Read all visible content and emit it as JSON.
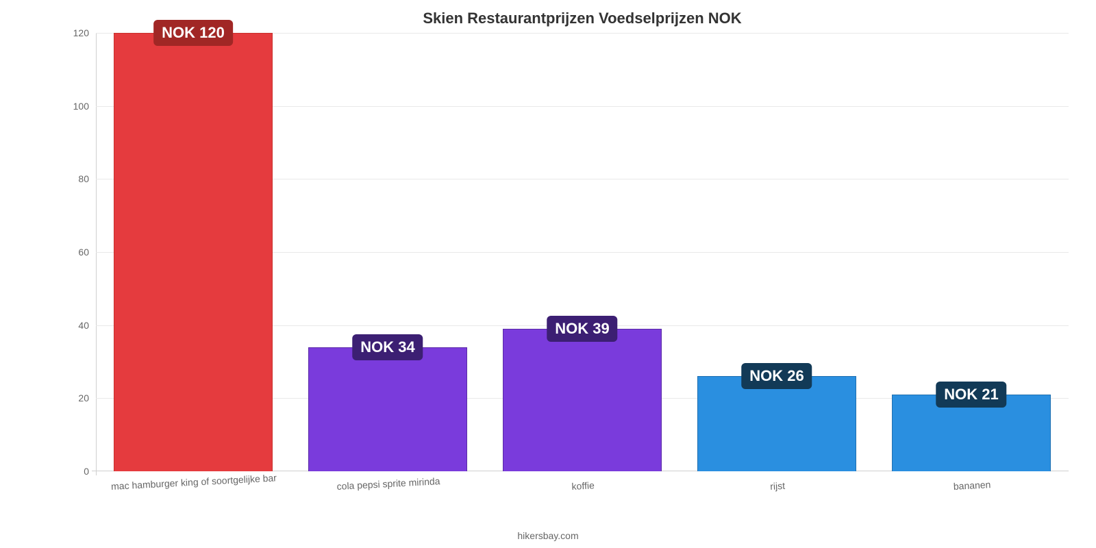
{
  "title": "Skien Restaurantprijzen Voedselprijzen NOK",
  "title_fontsize": 22,
  "title_color": "#333333",
  "attribution": "hikersbay.com",
  "attribution_fontsize": 14,
  "chart": {
    "type": "bar",
    "background_color": "#ffffff",
    "grid_color": "#e9e9e9",
    "axis_color": "#cfcfcf",
    "tick_font_color": "#666666",
    "tick_fontsize": 14,
    "xlabel_fontsize": 14,
    "xlabel_rotation_deg": -3,
    "ylim": [
      0,
      120
    ],
    "ytick_step": 20,
    "bar_width_pct": 82,
    "value_badge_fontsize": 22,
    "value_prefix": "NOK ",
    "categories": [
      "mac hamburger king of soortgelijke bar",
      "cola pepsi sprite mirinda",
      "koffie",
      "rijst",
      "bananen"
    ],
    "values": [
      120,
      34,
      39,
      26,
      21
    ],
    "bar_fill_colors": [
      "#e53b3e",
      "#7a3bdc",
      "#7a3bdc",
      "#2a8fe0",
      "#2a8fe0"
    ],
    "bar_border_colors": [
      "#c9302c",
      "#5a2aa6",
      "#5a2aa6",
      "#1f6fb0",
      "#1f6fb0"
    ],
    "badge_bg_colors": [
      "#a12725",
      "#3c1f73",
      "#3c1f73",
      "#123a57",
      "#123a57"
    ]
  }
}
